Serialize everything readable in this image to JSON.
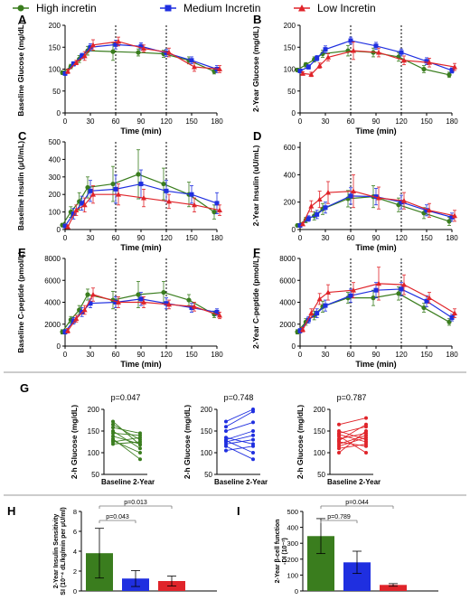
{
  "legend": [
    {
      "label": "High incretin",
      "color": "#3a7d1e",
      "marker": "circle"
    },
    {
      "label": "Medium Incretin",
      "color": "#1f2fe0",
      "marker": "square"
    },
    {
      "label": "Low Incretin",
      "color": "#e0242a",
      "marker": "triangle"
    }
  ],
  "chart_data": [
    {
      "type": "line",
      "letter": "A",
      "ylabel": "Baseline Glucose (mg/dL)",
      "xlabel": "Time (min)",
      "x": [
        0,
        10,
        20,
        30,
        60,
        90,
        120,
        150,
        180
      ],
      "xticks": [
        0,
        30,
        60,
        90,
        120,
        150,
        180
      ],
      "yticks": [
        0,
        50,
        100,
        150,
        200
      ],
      "ylim": [
        0,
        200
      ],
      "ylim_draw": [
        0,
        200
      ],
      "vlines": [
        60,
        120
      ],
      "series": [
        {
          "name": "High incretin",
          "values": [
            92,
            106,
            123,
            142,
            140,
            138,
            135,
            120,
            95
          ],
          "err": [
            4,
            5,
            8,
            10,
            20,
            8,
            8,
            8,
            6
          ]
        },
        {
          "name": "Medium Incretin",
          "values": [
            90,
            112,
            130,
            150,
            156,
            152,
            137,
            120,
            100
          ],
          "err": [
            4,
            5,
            6,
            8,
            10,
            8,
            8,
            8,
            8
          ]
        },
        {
          "name": "Low Incretin",
          "values": [
            95,
            115,
            130,
            155,
            163,
            147,
            138,
            105,
            100
          ],
          "err": [
            5,
            5,
            10,
            12,
            10,
            8,
            10,
            10,
            8
          ]
        }
      ]
    },
    {
      "type": "line",
      "letter": "B",
      "ylabel": "2-Year Glucose (mg/dL)",
      "xlabel": "Time (min)",
      "x": [
        0,
        10,
        20,
        30,
        60,
        90,
        120,
        150,
        180
      ],
      "xticks": [
        0,
        30,
        60,
        90,
        120,
        150,
        180
      ],
      "yticks": [
        0,
        50,
        100,
        150,
        200
      ],
      "ylim": [
        0,
        200
      ],
      "ylim_draw": [
        0,
        200
      ],
      "vlines": [
        60,
        120
      ],
      "series": [
        {
          "name": "High incretin",
          "values": [
            98,
            110,
            122,
            135,
            142,
            138,
            128,
            100,
            87
          ],
          "err": [
            4,
            5,
            6,
            8,
            12,
            10,
            10,
            8,
            6
          ]
        },
        {
          "name": "Medium Incretin",
          "values": [
            96,
            105,
            125,
            145,
            165,
            153,
            138,
            118,
            97
          ],
          "err": [
            4,
            5,
            6,
            8,
            8,
            8,
            8,
            8,
            6
          ]
        },
        {
          "name": "Low Incretin",
          "values": [
            90,
            88,
            108,
            127,
            142,
            138,
            120,
            115,
            105
          ],
          "err": [
            4,
            5,
            6,
            8,
            20,
            10,
            10,
            10,
            8
          ]
        }
      ]
    },
    {
      "type": "line",
      "letter": "C",
      "ylabel": "Baseline Insulin (μU/mL)",
      "xlabel": "Time (min)",
      "x": [
        0,
        10,
        20,
        30,
        60,
        90,
        120,
        150,
        180
      ],
      "xticks": [
        0,
        30,
        60,
        90,
        120,
        150,
        180
      ],
      "yticks": [
        0,
        100,
        200,
        300,
        400,
        500
      ],
      "ylim": [
        0,
        500
      ],
      "ylim_draw": [
        0,
        500
      ],
      "vlines": [
        60,
        120
      ],
      "series": [
        {
          "name": "High incretin",
          "values": [
            25,
            100,
            160,
            240,
            260,
            315,
            260,
            200,
            100
          ],
          "err": [
            10,
            30,
            50,
            60,
            100,
            140,
            90,
            70,
            40
          ]
        },
        {
          "name": "Medium Incretin",
          "values": [
            20,
            90,
            150,
            220,
            230,
            260,
            220,
            200,
            150
          ],
          "err": [
            10,
            30,
            40,
            60,
            80,
            80,
            60,
            50,
            60
          ]
        },
        {
          "name": "Low Incretin",
          "values": [
            15,
            110,
            140,
            200,
            200,
            180,
            160,
            140,
            110
          ],
          "err": [
            10,
            30,
            40,
            50,
            60,
            50,
            40,
            40,
            30
          ]
        }
      ]
    },
    {
      "type": "line",
      "letter": "D",
      "ylabel": "2-Year Insulin (uU/mL)",
      "xlabel": "Time (min)",
      "x": [
        0,
        10,
        20,
        30,
        60,
        90,
        120,
        150,
        180
      ],
      "xticks": [
        0,
        30,
        60,
        90,
        120,
        150,
        180
      ],
      "yticks": [
        0,
        200,
        400,
        600
      ],
      "ylim": [
        0,
        600
      ],
      "ylim_draw": [
        0,
        640
      ],
      "vlines": [
        60,
        120
      ],
      "series": [
        {
          "name": "High incretin",
          "values": [
            30,
            70,
            100,
            150,
            225,
            240,
            180,
            120,
            60
          ],
          "err": [
            10,
            20,
            30,
            40,
            60,
            80,
            50,
            40,
            30
          ]
        },
        {
          "name": "Medium Incretin",
          "values": [
            30,
            80,
            110,
            160,
            245,
            240,
            200,
            140,
            90
          ],
          "err": [
            10,
            20,
            30,
            40,
            60,
            60,
            50,
            40,
            30
          ]
        },
        {
          "name": "Low Incretin",
          "values": [
            40,
            170,
            220,
            270,
            280,
            230,
            210,
            140,
            100
          ],
          "err": [
            10,
            40,
            60,
            80,
            120,
            80,
            60,
            50,
            40
          ]
        }
      ]
    },
    {
      "type": "line",
      "letter": "E",
      "ylabel": "Baseline C-peptide (pmol/L)",
      "xlabel": "Time (min)",
      "x": [
        0,
        10,
        20,
        30,
        60,
        90,
        120,
        150,
        180
      ],
      "xticks": [
        0,
        30,
        60,
        90,
        120,
        150,
        180
      ],
      "yticks": [
        0,
        2000,
        4000,
        6000,
        8000
      ],
      "ylim": [
        0,
        8000
      ],
      "ylim_draw": [
        0,
        8000
      ],
      "vlines": [
        60,
        120
      ],
      "series": [
        {
          "name": "High incretin",
          "values": [
            1300,
            2400,
            3300,
            4700,
            4200,
            4700,
            4900,
            4200,
            2900
          ],
          "err": [
            200,
            300,
            400,
            500,
            800,
            1200,
            1000,
            500,
            300
          ]
        },
        {
          "name": "Medium Incretin",
          "values": [
            1300,
            2300,
            3100,
            3900,
            4000,
            4300,
            3900,
            3500,
            3100
          ],
          "err": [
            200,
            300,
            400,
            400,
            500,
            600,
            500,
            400,
            300
          ]
        },
        {
          "name": "Low Incretin",
          "values": [
            1400,
            2500,
            3300,
            4700,
            4000,
            4000,
            3800,
            3600,
            2800
          ],
          "err": [
            200,
            300,
            400,
            600,
            500,
            500,
            400,
            400,
            300
          ]
        }
      ]
    },
    {
      "type": "line",
      "letter": "F",
      "ylabel": "2-Year C-peptide (pmol/L)",
      "xlabel": "Time (min)",
      "x": [
        0,
        10,
        20,
        30,
        60,
        90,
        120,
        150,
        180
      ],
      "xticks": [
        0,
        30,
        60,
        90,
        120,
        150,
        180
      ],
      "yticks": [
        0,
        2000,
        4000,
        6000,
        8000
      ],
      "ylim": [
        0,
        8000
      ],
      "ylim_draw": [
        0,
        8000
      ],
      "vlines": [
        60,
        120
      ],
      "series": [
        {
          "name": "High incretin",
          "values": [
            1300,
            2200,
            2800,
            3600,
            4400,
            4400,
            4800,
            3500,
            2200
          ],
          "err": [
            200,
            300,
            400,
            500,
            500,
            700,
            600,
            400,
            300
          ]
        },
        {
          "name": "Medium Incretin",
          "values": [
            1400,
            2400,
            3000,
            3700,
            4600,
            5100,
            5200,
            4100,
            2600
          ],
          "err": [
            200,
            300,
            400,
            500,
            600,
            700,
            600,
            500,
            300
          ]
        },
        {
          "name": "Low Incretin",
          "values": [
            1500,
            3000,
            4300,
            4900,
            5100,
            5700,
            5600,
            4400,
            3000
          ],
          "err": [
            200,
            400,
            500,
            700,
            700,
            1500,
            900,
            500,
            400
          ]
        }
      ]
    },
    {
      "type": "paired",
      "letter": "G",
      "ylabel": "2-h Glucose (mg/dL)",
      "yticks": [
        50,
        100,
        150,
        200
      ],
      "ylim": [
        50,
        200
      ],
      "categories": [
        "Baseline",
        "2-Year"
      ],
      "panels": [
        {
          "series": "High incretin",
          "p": "p=0.047",
          "pairs": [
            [
              172,
              118
            ],
            [
              165,
              130
            ],
            [
              158,
              145
            ],
            [
              150,
              110
            ],
            [
              145,
              140
            ],
            [
              138,
              120
            ],
            [
              132,
              85
            ],
            [
              128,
              100
            ],
            [
              125,
              135
            ],
            [
              120,
              125
            ]
          ]
        },
        {
          "series": "Medium Incretin",
          "p": "p=0.748",
          "pairs": [
            [
              172,
              200
            ],
            [
              160,
              195
            ],
            [
              150,
              170
            ],
            [
              135,
              120
            ],
            [
              130,
              150
            ],
            [
              128,
              100
            ],
            [
              125,
              140
            ],
            [
              120,
              130
            ],
            [
              115,
              85
            ],
            [
              105,
              115
            ]
          ]
        },
        {
          "series": "Low Incretin",
          "p": "p=0.787",
          "pairs": [
            [
              165,
              180
            ],
            [
              150,
              130
            ],
            [
              145,
              160
            ],
            [
              142,
              125
            ],
            [
              138,
              100
            ],
            [
              132,
              145
            ],
            [
              128,
              165
            ],
            [
              125,
              115
            ],
            [
              120,
              140
            ],
            [
              115,
              135
            ],
            [
              110,
              120
            ],
            [
              100,
              150
            ]
          ]
        }
      ]
    },
    {
      "type": "bar",
      "letter": "H",
      "ylabel": "2-Year Insulin Sensitivity",
      "ylabel2": "SI (10⁻⁴ dL/kg/min per μU/ml)",
      "categories": [
        "High incretin",
        "Medium Incretin",
        "Low Incretin"
      ],
      "values": [
        3.8,
        1.25,
        1.0
      ],
      "err": [
        2.5,
        0.8,
        0.5
      ],
      "yticks": [
        0,
        2,
        4,
        6,
        8
      ],
      "ylim": [
        0,
        8
      ],
      "brackets": [
        {
          "from": 0,
          "to": 2,
          "label": "p=0.013"
        },
        {
          "from": 0,
          "to": 1,
          "label": "p=0.043"
        }
      ]
    },
    {
      "type": "bar",
      "letter": "I",
      "ylabel": "2-Year β-cell function",
      "ylabel2": "-DI (10⁻²)",
      "categories": [
        "High incretin",
        "Medium Incretin",
        "Low Incretin"
      ],
      "values": [
        345,
        180,
        38
      ],
      "err": [
        110,
        70,
        8
      ],
      "yticks": [
        0,
        100,
        200,
        300,
        400,
        500
      ],
      "ylim": [
        0,
        500
      ],
      "brackets": [
        {
          "from": 0,
          "to": 2,
          "label": "p=0.044"
        },
        {
          "from": 0,
          "to": 1,
          "label": "p=0.789"
        }
      ]
    }
  ]
}
